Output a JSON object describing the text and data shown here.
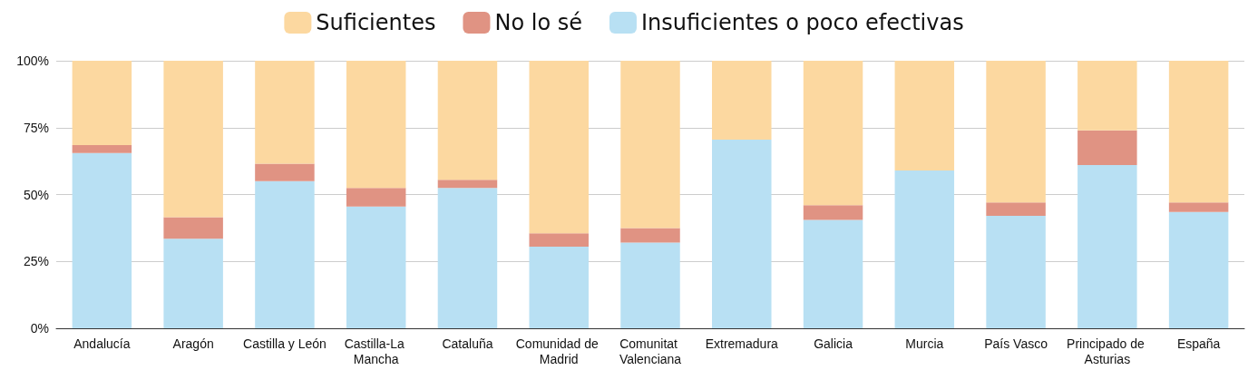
{
  "chart_data": {
    "type": "bar",
    "stacked": true,
    "categories": [
      "Andalucía",
      "Aragón",
      "Castilla y León",
      "Castilla-La Mancha",
      "Cataluña",
      "Comunidad de Madrid",
      "Comunitat Valenciana",
      "Extremadura",
      "Galicia",
      "Murcia",
      "País Vasco",
      "Principado de Asturias",
      "España"
    ],
    "series": [
      {
        "name": "Insuficientes o poco efectivas",
        "color": "#b8e0f3",
        "values": [
          65.5,
          33.5,
          55,
          45.5,
          52.5,
          30.5,
          32,
          70.5,
          40.5,
          59,
          42,
          61,
          43.5
        ]
      },
      {
        "name": "No lo sé",
        "color": "#e09383",
        "values": [
          3,
          8,
          6.5,
          7,
          3,
          5,
          5.5,
          0,
          5.5,
          0,
          5,
          13,
          3.5
        ]
      },
      {
        "name": "Suficientes",
        "color": "#fcd8a0",
        "values": [
          31.5,
          58.5,
          38.5,
          47.5,
          44.5,
          64.5,
          62.5,
          29.5,
          54,
          41,
          53,
          26,
          53
        ]
      }
    ],
    "ylim": [
      0,
      100
    ],
    "yticks": [
      {
        "value": 0,
        "label": "0%"
      },
      {
        "value": 25,
        "label": "25%"
      },
      {
        "value": 50,
        "label": "50%"
      },
      {
        "value": 75,
        "label": "75%"
      },
      {
        "value": 100,
        "label": "100%"
      }
    ],
    "grid": "y",
    "legend": "top"
  }
}
